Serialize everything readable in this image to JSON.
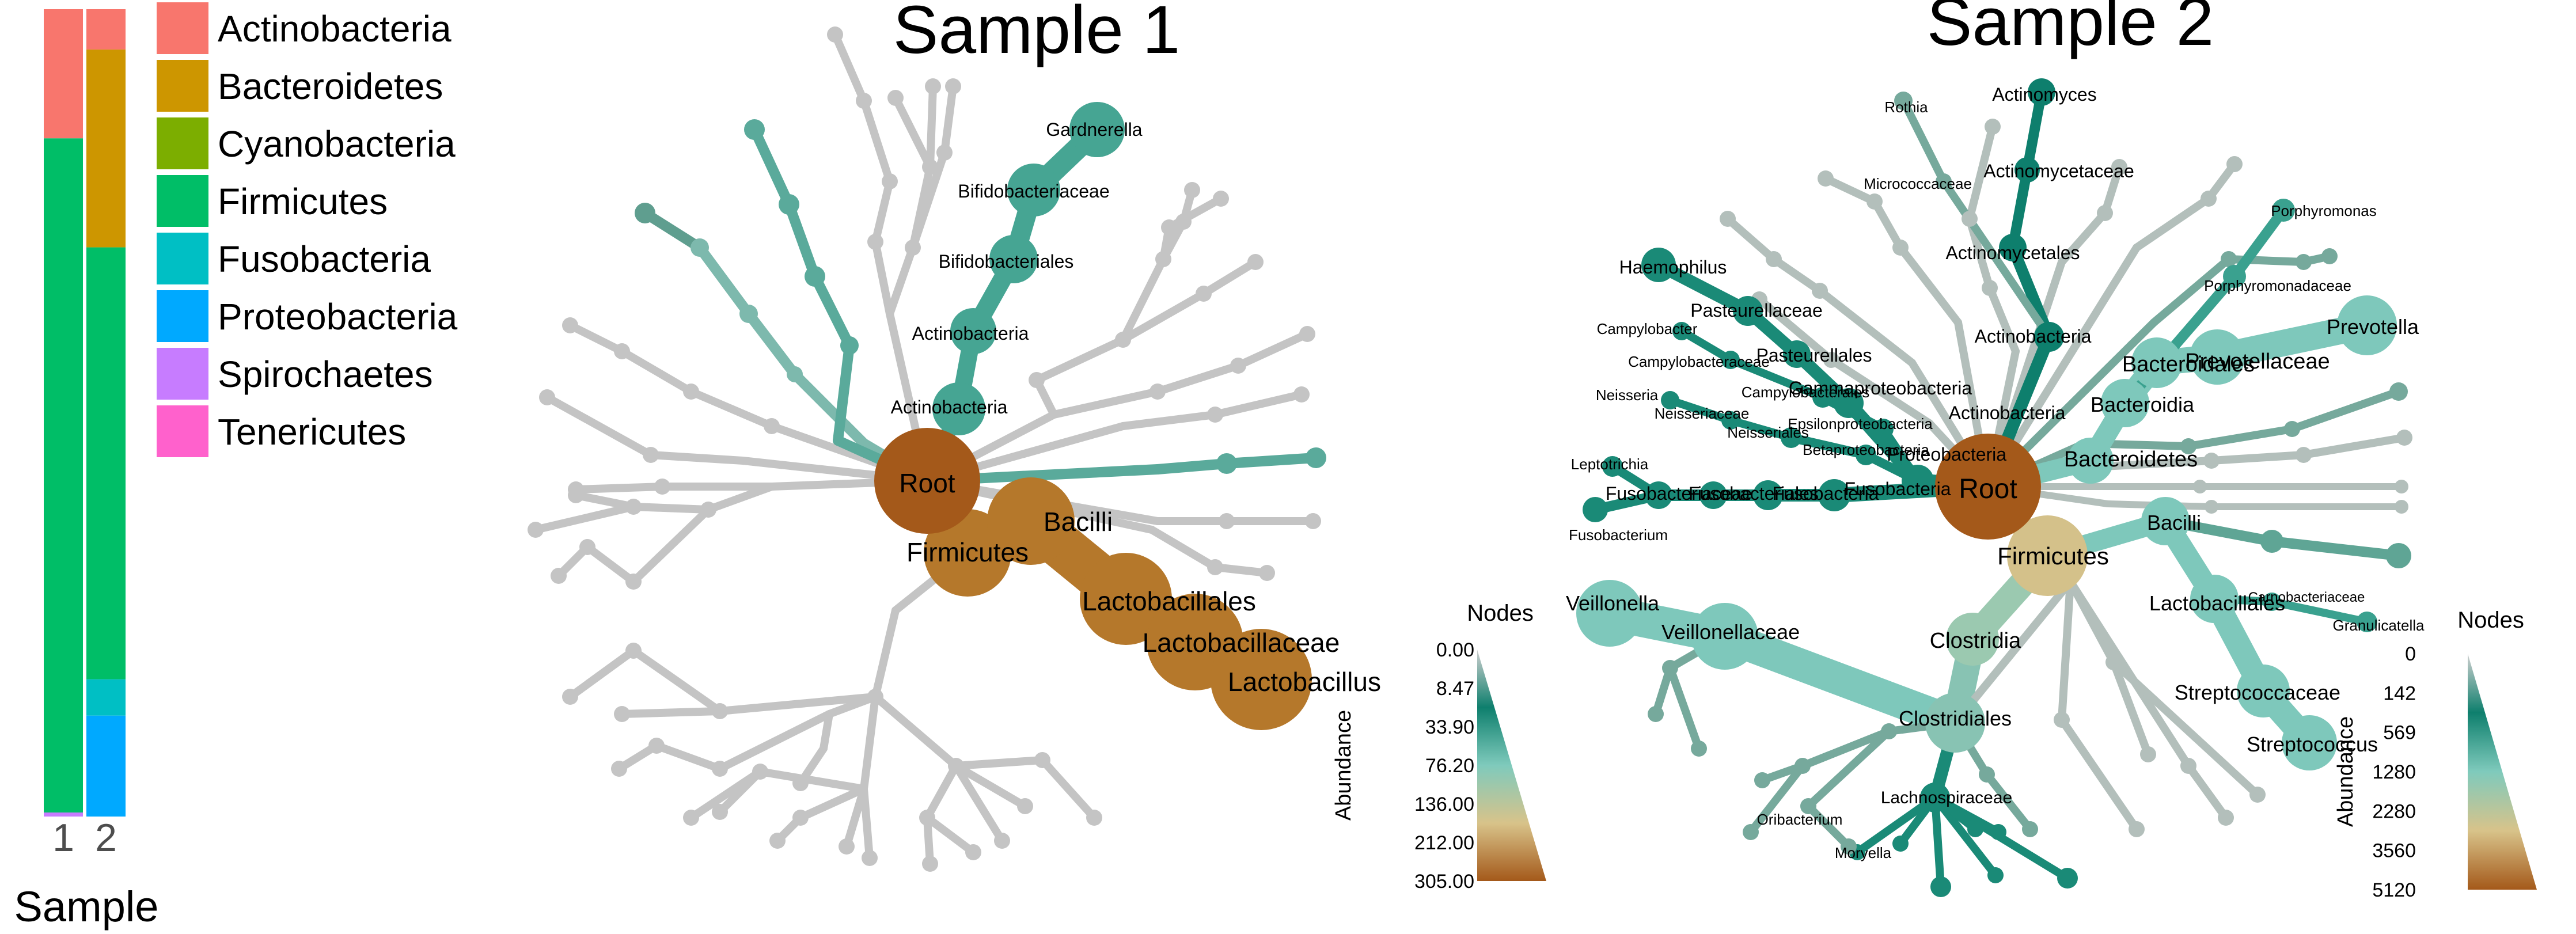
{
  "chart_data": [
    {
      "type": "bar",
      "xlabel": "Sample",
      "categories": [
        "1",
        "2"
      ],
      "stacked": true,
      "series": [
        {
          "name": "Actinobacteria",
          "values": [
            16.0,
            5.0
          ]
        },
        {
          "name": "Bacteroidetes",
          "values": [
            0.0,
            24.5
          ]
        },
        {
          "name": "Cyanobacteria",
          "values": [
            0.0,
            0.0
          ]
        },
        {
          "name": "Firmicutes",
          "values": [
            83.5,
            53.5
          ]
        },
        {
          "name": "Fusobacteria",
          "values": [
            0.0,
            4.5
          ]
        },
        {
          "name": "Proteobacteria",
          "values": [
            0.0,
            12.5
          ]
        },
        {
          "name": "Spirochaetes",
          "values": [
            0.5,
            0.0
          ]
        },
        {
          "name": "Tenericutes",
          "values": [
            0.0,
            0.0
          ]
        }
      ],
      "colors": [
        "#F8766D",
        "#CD9600",
        "#7CAE00",
        "#00BE67",
        "#00BFC4",
        "#00A9FF",
        "#C77CFF",
        "#FF61CC"
      ],
      "legend": "right"
    },
    {
      "type": "tree",
      "title": "Sample 1",
      "legend": {
        "title": "Nodes",
        "axis_label": "Abundance",
        "ticks": [
          "0.00",
          "8.47",
          "33.90",
          "76.20",
          "136.00",
          "212.00",
          "305.00"
        ]
      },
      "labels": [
        "Root",
        "Firmicutes",
        "Bacilli",
        "Lactobacillales",
        "Lactobacillaceae",
        "Lactobacillus",
        "Actinobacteria",
        "Actinobacteria",
        "Bifidobacteriales",
        "Bifidobacteriaceae",
        "Gardnerella"
      ]
    },
    {
      "type": "tree",
      "title": "Sample 2",
      "legend": {
        "title": "Nodes",
        "axis_label": "Abundance",
        "ticks": [
          "0",
          "142",
          "569",
          "1280",
          "2280",
          "3560",
          "5120"
        ]
      },
      "labels": [
        "Root",
        "Firmicutes",
        "Bacteroidetes",
        "Bacteroidia",
        "Bacteroidales",
        "Prevotellaceae",
        "Prevotella",
        "Porphyromonadaceae",
        "Porphyromonas",
        "Bacilli",
        "Lactobacillales",
        "Streptococcaceae",
        "Streptococcus",
        "Carnobacteriaceae",
        "Granulicatella",
        "Clostridia",
        "Clostridiales",
        "Lachnospiraceae",
        "Oribacterium",
        "Moryella",
        "Veillonellaceae",
        "Veillonella",
        "Actinobacteria",
        "Actinobacteria",
        "Actinomycetales",
        "Actinomycetaceae",
        "Actinomyces",
        "Micrococcaceae",
        "Rothia",
        "Proteobacteria",
        "Gammaproteobacteria",
        "Pasteurellales",
        "Pasteurellaceae",
        "Haemophilus",
        "Campylobacter",
        "Campylobacteraceae",
        "Campylobacterales",
        "Epsilonproteobacteria",
        "Neisseria",
        "Neisseriaceae",
        "Neisseriales",
        "Betaproteobacteria",
        "Fusobacteria",
        "Fusobacteria",
        "Fusobacteriales",
        "Fusobacteriaceae",
        "Leptotrichia",
        "Fusobacterium"
      ]
    }
  ]
}
